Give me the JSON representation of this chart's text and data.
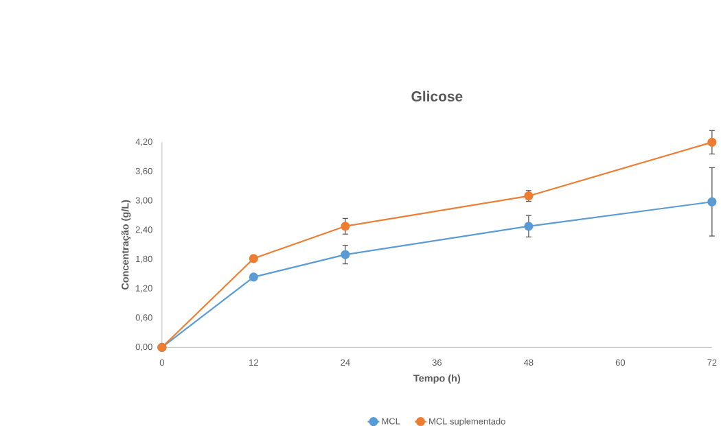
{
  "chart_data": {
    "type": "line",
    "title": "Glicose",
    "xlabel": "Tempo (h)",
    "ylabel": "Concentração (g/L)",
    "x": [
      0,
      12,
      24,
      48,
      72
    ],
    "series": [
      {
        "name": "MCL",
        "color": "#5b9bd5",
        "values": [
          0,
          1.44,
          1.9,
          2.48,
          2.98
        ],
        "errors": [
          null,
          null,
          0.19,
          0.22,
          0.7
        ]
      },
      {
        "name": "MCL suplementado",
        "color": "#ed7d31",
        "values": [
          0,
          1.82,
          2.48,
          3.1,
          4.2
        ],
        "errors": [
          null,
          null,
          0.16,
          0.11,
          0.24
        ]
      }
    ],
    "xlim": [
      0,
      72
    ],
    "xticks": [
      0,
      12,
      24,
      36,
      48,
      60,
      72
    ],
    "ylim": [
      0,
      4.2
    ],
    "yticks": [
      {
        "value": 0,
        "label": "0,00"
      },
      {
        "value": 0.6,
        "label": "0,60"
      },
      {
        "value": 1.2,
        "label": "1,20"
      },
      {
        "value": 1.8,
        "label": "1,80"
      },
      {
        "value": 2.4,
        "label": "2,40"
      },
      {
        "value": 3.0,
        "label": "3,00"
      },
      {
        "value": 3.6,
        "label": "3,60"
      },
      {
        "value": 4.2,
        "label": "4,20"
      }
    ],
    "grid": false,
    "legend": "bottom",
    "marker": "circle",
    "line_style": "solid"
  }
}
